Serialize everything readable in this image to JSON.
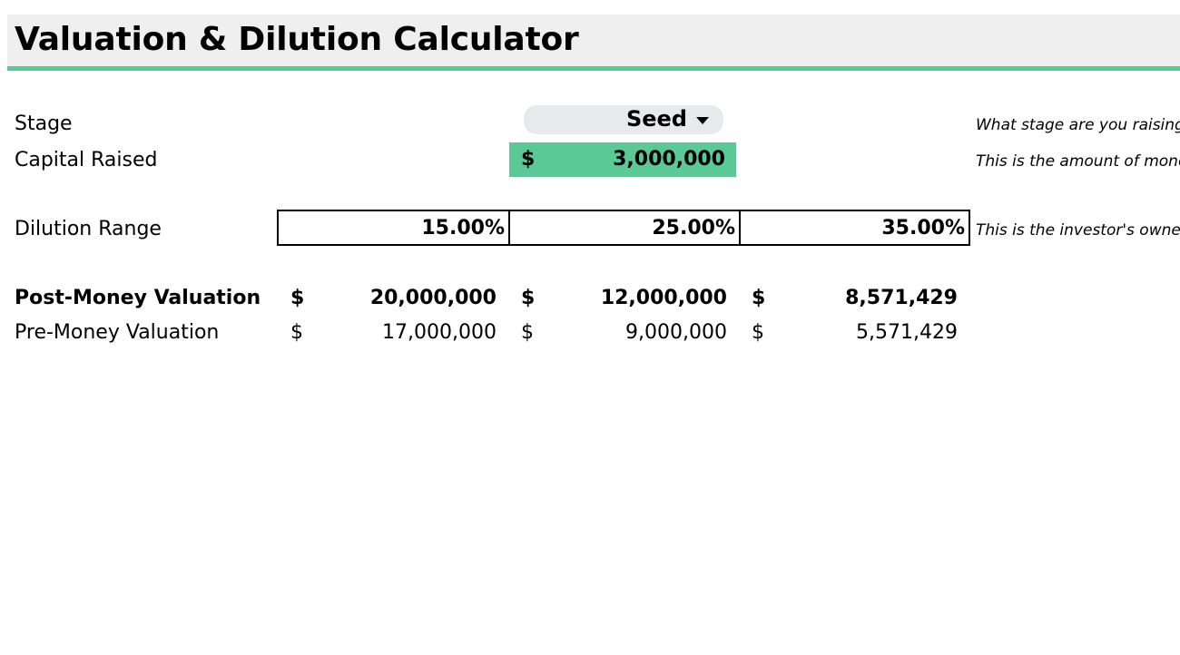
{
  "header": {
    "title": "Valuation & Dilution Calculator"
  },
  "inputs": {
    "stage": {
      "label": "Stage",
      "value": "Seed",
      "note": "What stage are you raising"
    },
    "capital": {
      "label": "Capital Raised",
      "currency": "$",
      "value": "3,000,000",
      "note": "This is the amount of money"
    },
    "dilution": {
      "label": "Dilution Range",
      "values": [
        "15.00%",
        "25.00%",
        "35.00%"
      ],
      "note": "This is the investor's ownership"
    }
  },
  "results": {
    "post_money": {
      "label": "Post-Money Valuation",
      "currency": "$",
      "values": [
        "20,000,000",
        "12,000,000",
        "8,571,429"
      ]
    },
    "pre_money": {
      "label": "Pre-Money Valuation",
      "currency": "$",
      "values": [
        "17,000,000",
        "9,000,000",
        "5,571,429"
      ]
    }
  },
  "colors": {
    "accent": "#5ac995",
    "header_bg": "#efefef",
    "dropdown_bg": "#e8e9eb"
  }
}
